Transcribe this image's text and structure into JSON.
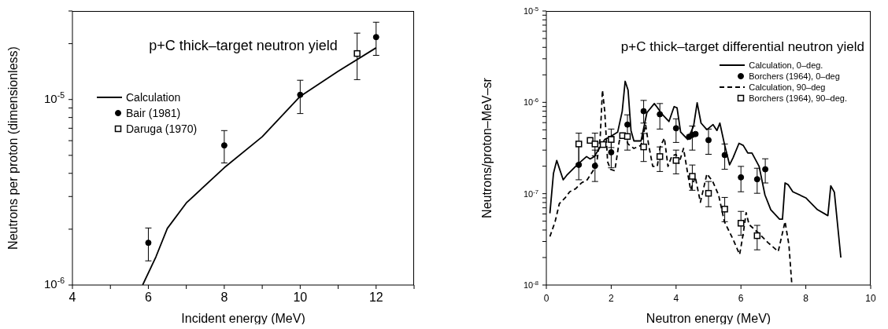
{
  "chart_data": [
    {
      "type": "line",
      "title": "p+C thick–target neutron yield",
      "xlabel": "Incident energy (MeV)",
      "ylabel": "Neutrons per proton (dimensionless)",
      "log": "y",
      "legend": "top left",
      "grid": false,
      "xlim": [
        4,
        13
      ],
      "xticks": [
        4,
        {
          "value": 5,
          "label": null
        },
        6,
        {
          "value": 7,
          "label": null
        },
        8,
        {
          "value": 9,
          "label": null
        },
        10,
        {
          "value": 11,
          "label": null
        },
        12,
        {
          "value": 13,
          "label": null
        }
      ],
      "ylim": [
        1e-06,
        3e-05
      ],
      "yticks": [
        {
          "value": 1e-06,
          "label": "10$^{-6}$"
        },
        {
          "value": 2e-06,
          "label": null
        },
        {
          "value": 3e-06,
          "label": null
        },
        {
          "value": 4e-06,
          "label": null
        },
        {
          "value": 5e-06,
          "label": null
        },
        {
          "value": 6e-06,
          "label": null
        },
        {
          "value": 7e-06,
          "label": null
        },
        {
          "value": 8e-06,
          "label": null
        },
        {
          "value": 9e-06,
          "label": null
        },
        {
          "value": 1e-05,
          "label": "10$^{-5}$"
        },
        {
          "value": 2e-05,
          "label": null
        },
        {
          "value": 3e-05,
          "label": null
        }
      ],
      "series": [
        {
          "name": "Calculation",
          "type": "line",
          "line_style": "solid",
          "marker": "none",
          "color": "#000000",
          "x": [
            5.85,
            6.2,
            6.5,
            7,
            8,
            9,
            10,
            11,
            12
          ],
          "values": [
            1e-06,
            1.42e-06,
            2.02e-06,
            2.77e-06,
            4.29e-06,
            6.3e-06,
            1.04e-05,
            1.42e-05,
            1.9e-05
          ]
        },
        {
          "name": "Bair (1981)",
          "type": "scatter",
          "marker": "circle",
          "color": "#000000",
          "x": [
            6,
            8,
            10,
            12
          ],
          "values": [
            1.69e-06,
            5.66e-06,
            1.06e-05,
            2.17e-05
          ],
          "errors": [
            [
              1.35e-06,
              2.03e-06
            ],
            [
              4.55e-06,
              6.8e-06
            ],
            [
              8.4e-06,
              1.27e-05
            ],
            [
              1.73e-05,
              2.61e-05
            ]
          ]
        },
        {
          "name": "Daruga (1970)",
          "type": "scatter",
          "marker": "square",
          "color": "#000000",
          "x": [
            11.5
          ],
          "values": [
            1.77e-05
          ],
          "errors": [
            [
              1.28e-05,
              2.28e-05
            ]
          ]
        }
      ]
    },
    {
      "type": "line",
      "title": "p+C thick–target differential neutron yield",
      "xlabel": "Neutron energy (MeV)",
      "ylabel": "Neutrons/proton–MeV–sr",
      "log": "y",
      "legend": "top right",
      "grid": false,
      "xlim": [
        0,
        10
      ],
      "xticks": [
        0,
        2,
        4,
        6,
        8,
        10
      ],
      "ylim": [
        1e-08,
        1e-05
      ],
      "yticks": [
        {
          "value": 1e-08,
          "label": "10$^{-8}$"
        },
        {
          "value": 2e-08,
          "label": null
        },
        {
          "value": 3e-08,
          "label": null
        },
        {
          "value": 4e-08,
          "label": null
        },
        {
          "value": 5e-08,
          "label": null
        },
        {
          "value": 6e-08,
          "label": null
        },
        {
          "value": 7e-08,
          "label": null
        },
        {
          "value": 8e-08,
          "label": null
        },
        {
          "value": 9e-08,
          "label": null
        },
        {
          "value": 1e-07,
          "label": "10$^{-7}$"
        },
        {
          "value": 2e-07,
          "label": null
        },
        {
          "value": 3e-07,
          "label": null
        },
        {
          "value": 4e-07,
          "label": null
        },
        {
          "value": 5e-07,
          "label": null
        },
        {
          "value": 6e-07,
          "label": null
        },
        {
          "value": 7e-07,
          "label": null
        },
        {
          "value": 8e-07,
          "label": null
        },
        {
          "value": 9e-07,
          "label": null
        },
        {
          "value": 1e-06,
          "label": "10$^{-6}$"
        },
        {
          "value": 2e-06,
          "label": null
        },
        {
          "value": 3e-06,
          "label": null
        },
        {
          "value": 4e-06,
          "label": null
        },
        {
          "value": 5e-06,
          "label": null
        },
        {
          "value": 6e-06,
          "label": null
        },
        {
          "value": 7e-06,
          "label": null
        },
        {
          "value": 8e-06,
          "label": null
        },
        {
          "value": 9e-06,
          "label": null
        },
        {
          "value": 1e-05,
          "label": "10$^{-5}$"
        }
      ],
      "series": [
        {
          "name": "Calculation, 0–deg.",
          "type": "line",
          "line_style": "solid",
          "marker": "none",
          "color": "#000000",
          "x": [
            0.11,
            0.22,
            0.32,
            0.52,
            0.63,
            0.97,
            1.24,
            1.35,
            1.48,
            1.62,
            1.8,
            1.98,
            2.2,
            2.34,
            2.43,
            2.52,
            2.61,
            2.7,
            2.92,
            3.1,
            3.33,
            3.42,
            3.55,
            3.78,
            3.94,
            4.03,
            4.14,
            4.36,
            4.54,
            4.65,
            4.77,
            4.95,
            5.14,
            5.26,
            5.35,
            5.49,
            5.65,
            5.76,
            5.94,
            6.07,
            6.21,
            6.34,
            6.56,
            6.74,
            6.92,
            7.19,
            7.28,
            7.36,
            7.46,
            7.6,
            8.0,
            8.36,
            8.68,
            8.77,
            8.88,
            9.08
          ],
          "values": [
            6.1e-08,
            1.67e-07,
            2.31e-07,
            1.42e-07,
            1.59e-07,
            2.1e-07,
            2.55e-07,
            2.4e-07,
            2.55e-07,
            3.08e-07,
            3.92e-07,
            4.23e-07,
            4.73e-07,
            8e-07,
            1.7e-06,
            1.36e-06,
            4.92e-07,
            3.78e-07,
            3.78e-07,
            7.7e-07,
            9.7e-07,
            8.8e-07,
            7.55e-07,
            6.17e-07,
            8.98e-07,
            8.7e-07,
            4.73e-07,
            3.92e-07,
            5.5e-07,
            9.9e-07,
            5.93e-07,
            5.02e-07,
            5.71e-07,
            4.92e-07,
            5.93e-07,
            3.5e-07,
            2.07e-07,
            2.49e-07,
            3.56e-07,
            3.38e-07,
            2.79e-07,
            2.79e-07,
            1.99e-07,
            9.7e-08,
            6.68e-08,
            5.25e-08,
            5.25e-08,
            1.31e-07,
            1.25e-07,
            1.05e-07,
            9e-08,
            6.68e-08,
            5.75e-08,
            1.22e-07,
            1.04e-07,
            2e-08
          ]
        },
        {
          "name": "Borchers (1964), 0–deg",
          "type": "scatter",
          "marker": "circle",
          "color": "#000000",
          "x": [
            1,
            1.5,
            2,
            2.5,
            3,
            3.5,
            4,
            4.4,
            4.5,
            4.6,
            5,
            5.5,
            6,
            6.5,
            6.75
          ],
          "values": [
            2.07e-07,
            2.02e-07,
            2.84e-07,
            5.71e-07,
            8e-07,
            7.4e-07,
            5.2e-07,
            4.2e-07,
            4.4e-07,
            4.5e-07,
            3.86e-07,
            2.65e-07,
            1.51e-07,
            1.44e-07,
            1.85e-07
          ],
          "errors": [
            [
              1.42e-07,
              3.64e-07
            ],
            [
              1.36e-07,
              3e-07
            ],
            [
              1.92e-07,
              4.23e-07
            ],
            [
              3e-07,
              7.3e-07
            ],
            [
              5.93e-07,
              1.05e-06
            ],
            [
              5.1e-07,
              9.7e-07
            ],
            [
              3.64e-07,
              6.6e-07
            ],
            null,
            [
              3e-07,
              5.5e-07
            ],
            null,
            [
              2.7e-07,
              5.1e-07
            ],
            [
              1.85e-07,
              3.5e-07
            ],
            [
              1.05e-07,
              1.99e-07
            ],
            [
              1.01e-07,
              1.9e-07
            ],
            [
              1.31e-07,
              2.41e-07
            ]
          ]
        },
        {
          "name": "Calculation, 90–deg",
          "type": "line",
          "line_style": "dashed",
          "marker": "none",
          "color": "#000000",
          "x": [
            0.11,
            0.27,
            0.4,
            0.58,
            0.72,
            0.9,
            1.08,
            1.26,
            1.44,
            1.57,
            1.66,
            1.73,
            1.8,
            1.89,
            1.98,
            2.11,
            2.25,
            2.38,
            2.52,
            2.7,
            2.92,
            3.06,
            3.15,
            3.28,
            3.42,
            3.51,
            3.64,
            3.75,
            3.87,
            4.0,
            4.09,
            4.23,
            4.36,
            4.45,
            4.59,
            4.75,
            4.95,
            5.13,
            5.31,
            5.49,
            5.76,
            5.96,
            6.07,
            6.16,
            6.25,
            6.56,
            6.83,
            7.15,
            7.36,
            7.48,
            7.57
          ],
          "values": [
            3.39e-08,
            4.94e-08,
            7.76e-08,
            9e-08,
            1.05e-07,
            1.13e-07,
            1.31e-07,
            1.42e-07,
            1.78e-07,
            2.4e-07,
            4.07e-07,
            1.36e-06,
            8e-07,
            2.23e-07,
            1.85e-07,
            1.78e-07,
            3.78e-07,
            4.73e-07,
            3.5e-07,
            3.13e-07,
            3.38e-07,
            5.71e-07,
            3.5e-07,
            1.99e-07,
            1.99e-07,
            3.25e-07,
            4.07e-07,
            1.99e-07,
            2.59e-07,
            2.69e-07,
            2.15e-07,
            3.13e-07,
            1.65e-07,
            1.09e-07,
            1.53e-07,
            8.06e-08,
            1.65e-07,
            1.36e-07,
            9.7e-08,
            4.94e-08,
            3.15e-08,
            2.16e-08,
            3.65e-08,
            6.2e-08,
            4.6e-08,
            3.65e-08,
            2.92e-08,
            2.33e-08,
            4.94e-08,
            2.73e-08,
            1e-08
          ]
        },
        {
          "name": "Borchers (1964), 90–deg.",
          "type": "scatter",
          "marker": "square",
          "color": "#000000",
          "x": [
            1,
            1.35,
            1.5,
            1.75,
            2,
            2.35,
            2.5,
            3,
            3.5,
            4,
            4.5,
            5,
            5.5,
            6,
            6.5
          ],
          "values": [
            3.5e-07,
            3.83e-07,
            3.5e-07,
            3.45e-07,
            3.92e-07,
            4.32e-07,
            4.23e-07,
            3.25e-07,
            2.55e-07,
            2.31e-07,
            1.55e-07,
            1.01e-07,
            6.78e-08,
            4.75e-08,
            3.47e-08
          ],
          "errors": [
            [
              2.12e-07,
              4.6e-07
            ],
            null,
            [
              2.6e-07,
              4.6e-07
            ],
            null,
            [
              3.2e-07,
              5.1e-07
            ],
            null,
            null,
            [
              2.25e-07,
              4.56e-07
            ],
            [
              1.75e-07,
              3.25e-07
            ],
            [
              1.65e-07,
              3e-07
            ],
            [
              1.09e-07,
              2.06e-07
            ],
            [
              7.2e-08,
              1.36e-07
            ],
            [
              4.94e-08,
              9.1e-08
            ],
            [
              3.5e-08,
              6.4e-08
            ],
            [
              2.43e-08,
              4.5e-08
            ]
          ]
        }
      ]
    }
  ]
}
